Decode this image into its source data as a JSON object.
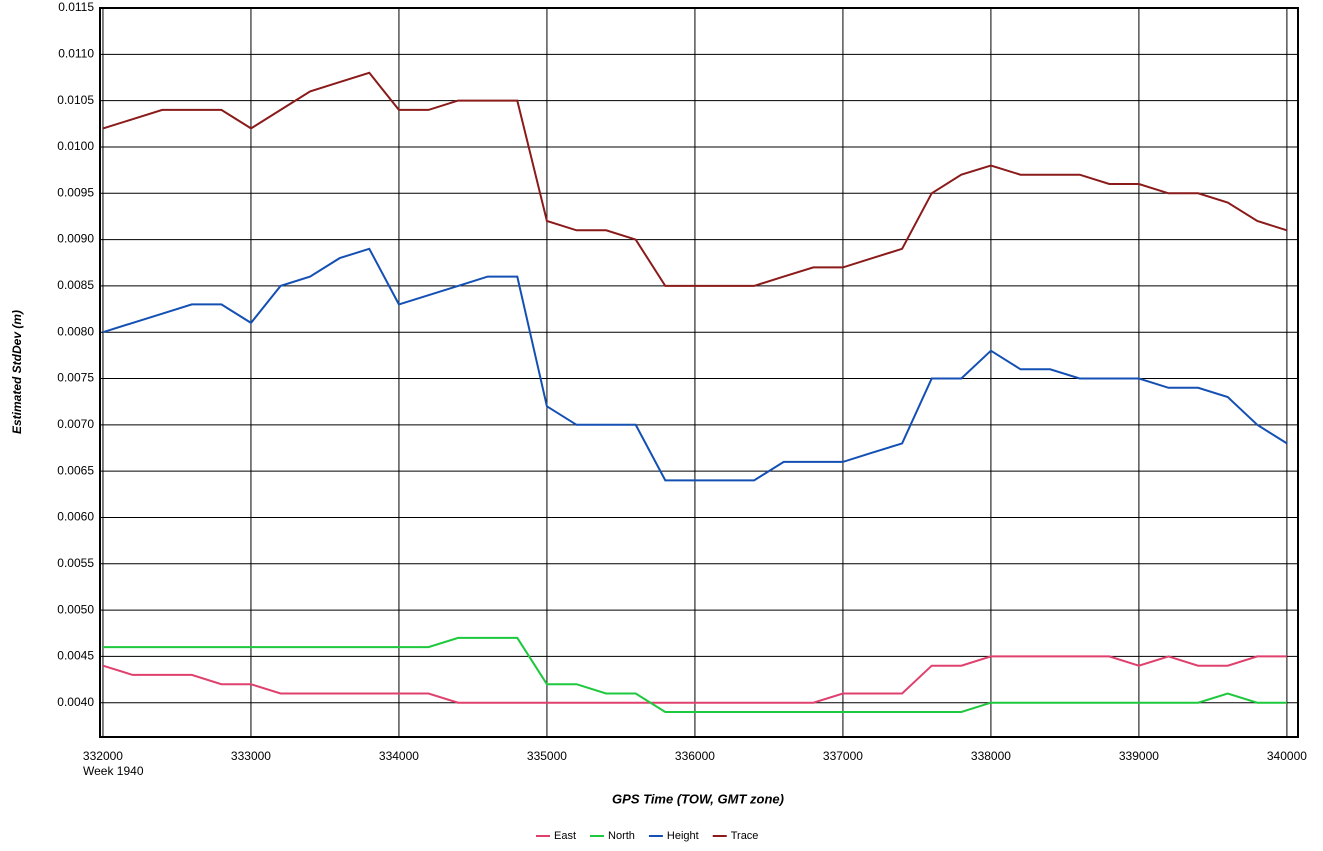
{
  "chart_data": {
    "type": "line",
    "y_label": "Estimated StdDev (m)",
    "x_label": "GPS Time (TOW, GMT zone)",
    "x_note": "Week 1940",
    "x": [
      332000,
      332200,
      332400,
      332600,
      332800,
      333000,
      333200,
      333400,
      333600,
      333800,
      334000,
      334200,
      334400,
      334600,
      334800,
      335000,
      335200,
      335400,
      335600,
      335800,
      336000,
      336200,
      336400,
      336600,
      336800,
      337000,
      337200,
      337400,
      337600,
      337800,
      338000,
      338200,
      338400,
      338600,
      338800,
      339000,
      339200,
      339400,
      339600,
      339800,
      340000
    ],
    "series": [
      {
        "name": "East",
        "color": "#e0406e",
        "values": [
          0.0044,
          0.0043,
          0.0043,
          0.0043,
          0.0042,
          0.0042,
          0.0041,
          0.0041,
          0.0041,
          0.0041,
          0.0041,
          0.0041,
          0.004,
          0.004,
          0.004,
          0.004,
          0.004,
          0.004,
          0.004,
          0.004,
          0.004,
          0.004,
          0.004,
          0.004,
          0.004,
          0.0041,
          0.0041,
          0.0041,
          0.0044,
          0.0044,
          0.0045,
          0.0045,
          0.0045,
          0.0045,
          0.0045,
          0.0044,
          0.0045,
          0.0044,
          0.0044,
          0.0045,
          0.0045
        ]
      },
      {
        "name": "North",
        "color": "#1ec83c",
        "values": [
          0.0046,
          0.0046,
          0.0046,
          0.0046,
          0.0046,
          0.0046,
          0.0046,
          0.0046,
          0.0046,
          0.0046,
          0.0046,
          0.0046,
          0.0047,
          0.0047,
          0.0047,
          0.0042,
          0.0042,
          0.0041,
          0.0041,
          0.0039,
          0.0039,
          0.0039,
          0.0039,
          0.0039,
          0.0039,
          0.0039,
          0.0039,
          0.0039,
          0.0039,
          0.0039,
          0.004,
          0.004,
          0.004,
          0.004,
          0.004,
          0.004,
          0.004,
          0.004,
          0.0041,
          0.004,
          0.004
        ]
      },
      {
        "name": "Height",
        "color": "#1450b4",
        "values": [
          0.008,
          0.0081,
          0.0082,
          0.0083,
          0.0083,
          0.0081,
          0.0085,
          0.0086,
          0.0088,
          0.0089,
          0.0083,
          0.0084,
          0.0085,
          0.0086,
          0.0086,
          0.0072,
          0.007,
          0.007,
          0.007,
          0.0064,
          0.0064,
          0.0064,
          0.0064,
          0.0066,
          0.0066,
          0.0066,
          0.0067,
          0.0068,
          0.0075,
          0.0075,
          0.0078,
          0.0076,
          0.0076,
          0.0075,
          0.0075,
          0.0075,
          0.0074,
          0.0074,
          0.0073,
          0.007,
          0.0068
        ]
      },
      {
        "name": "Trace",
        "color": "#8b1a1a",
        "values": [
          0.0102,
          0.0103,
          0.0104,
          0.0104,
          0.0104,
          0.0102,
          0.0104,
          0.0106,
          0.0107,
          0.0108,
          0.0104,
          0.0104,
          0.0105,
          0.0105,
          0.0105,
          0.0092,
          0.0091,
          0.0091,
          0.009,
          0.0085,
          0.0085,
          0.0085,
          0.0085,
          0.0086,
          0.0087,
          0.0087,
          0.0088,
          0.0089,
          0.0095,
          0.0097,
          0.0098,
          0.0097,
          0.0097,
          0.0097,
          0.0096,
          0.0096,
          0.0095,
          0.0095,
          0.0094,
          0.0092,
          0.0091
        ]
      }
    ],
    "xlim": [
      331980,
      340075
    ],
    "xticks": [
      332000,
      333000,
      334000,
      335000,
      336000,
      337000,
      338000,
      339000,
      340000
    ],
    "ylim": [
      0.00363,
      0.0115
    ],
    "yticks": [
      {
        "value": 0.004,
        "label": "0.0040"
      },
      0.0045,
      {
        "value": 0.005,
        "label": "0.0050"
      },
      0.0055,
      {
        "value": 0.006,
        "label": "0.0060"
      },
      0.0065,
      {
        "value": 0.007,
        "label": "0.0070"
      },
      0.0075,
      {
        "value": 0.008,
        "label": "0.0080"
      },
      0.0085,
      {
        "value": 0.009,
        "label": "0.0090"
      },
      0.0095,
      {
        "value": 0.01,
        "label": "0.0100"
      },
      0.0105,
      {
        "value": 0.011,
        "label": "0.0110"
      },
      0.0115
    ],
    "grid": true
  }
}
